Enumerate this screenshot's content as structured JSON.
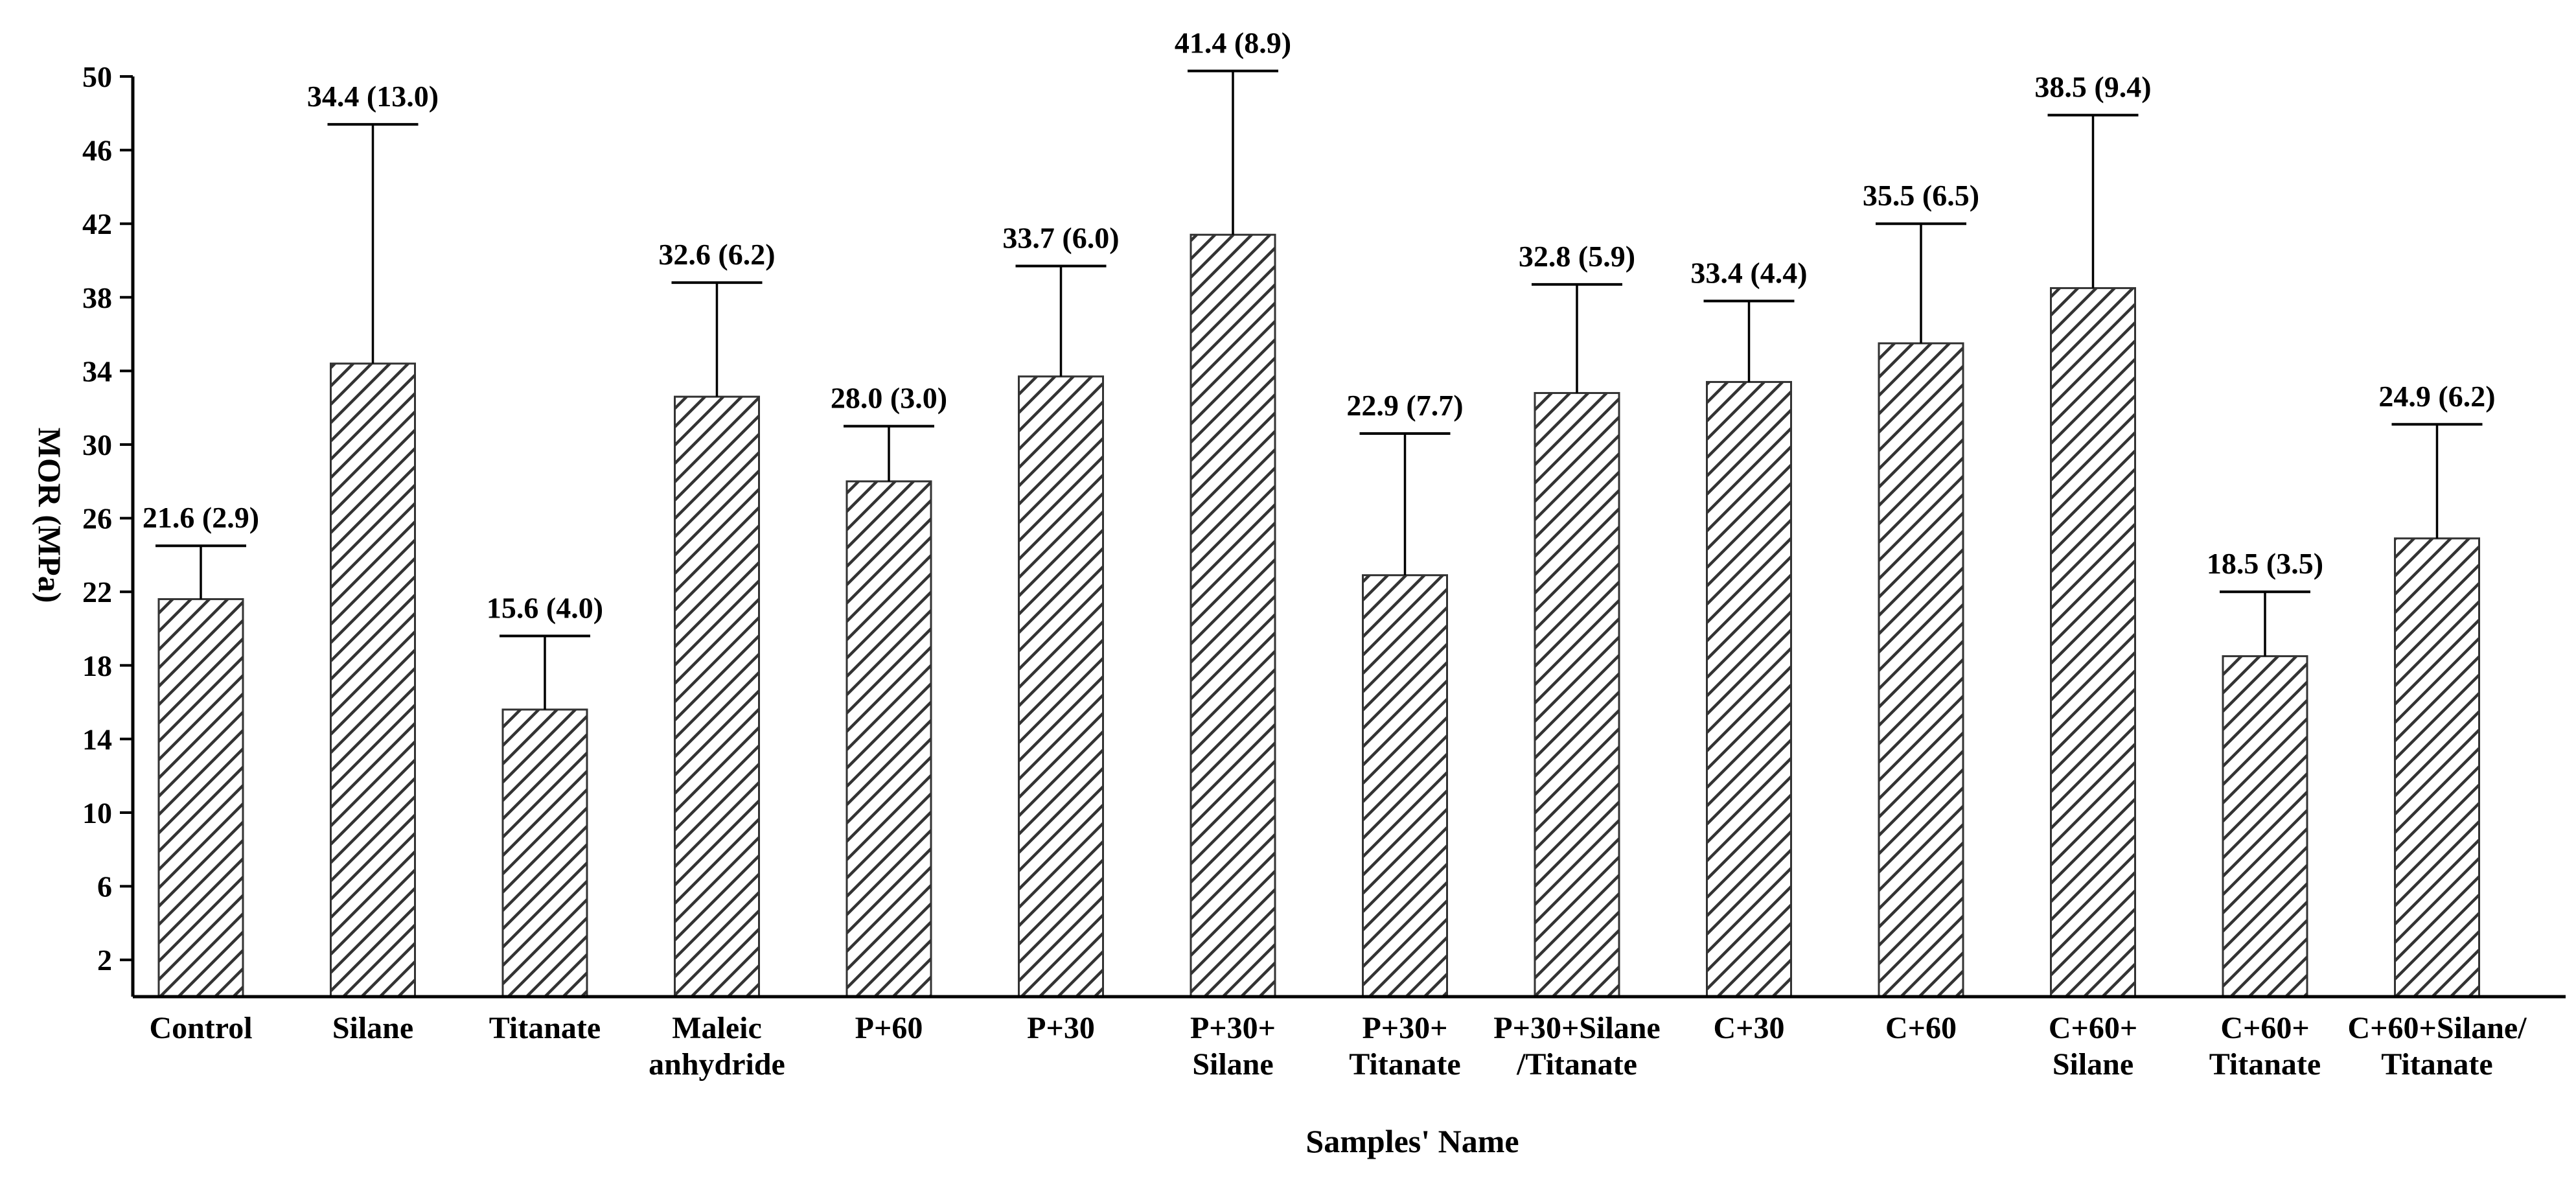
{
  "chart_data": {
    "type": "bar",
    "title": "",
    "xlabel": "Samples' Name",
    "ylabel": "MOR (MPa)",
    "ylim": [
      0,
      50
    ],
    "yticks": [
      2,
      6,
      10,
      14,
      18,
      22,
      26,
      30,
      34,
      38,
      42,
      46,
      50
    ],
    "grid": false,
    "legend": "none",
    "bar_pattern": "diagonal-hatch",
    "colors": {
      "bar_fill": "#ffffff",
      "hatch": "#333333",
      "axis": "#000000",
      "text": "#000000"
    },
    "categories": [
      [
        "Control"
      ],
      [
        "Silane"
      ],
      [
        "Titanate"
      ],
      [
        "Maleic",
        "anhydride"
      ],
      [
        "P+60"
      ],
      [
        "P+30"
      ],
      [
        "P+30+",
        "Silane"
      ],
      [
        "P+30+",
        "Titanate"
      ],
      [
        "P+30+Silane",
        "/Titanate"
      ],
      [
        "C+30"
      ],
      [
        "C+60"
      ],
      [
        "C+60+",
        "Silane"
      ],
      [
        "C+60+",
        "Titanate"
      ],
      [
        "C+60+Silane/",
        "Titanate"
      ]
    ],
    "values": [
      21.6,
      34.4,
      15.6,
      32.6,
      28.0,
      33.7,
      41.4,
      22.9,
      32.8,
      33.4,
      35.5,
      38.5,
      18.5,
      24.9
    ],
    "errors": [
      2.9,
      13.0,
      4.0,
      6.2,
      3.0,
      6.0,
      8.9,
      7.7,
      5.9,
      4.4,
      6.5,
      9.4,
      3.5,
      6.2
    ],
    "data_labels": [
      "21.6 (2.9)",
      "34.4 (13.0)",
      "15.6 (4.0)",
      "32.6 (6.2)",
      "28.0 (3.0)",
      "33.7 (6.0)",
      "41.4 (8.9)",
      "22.9 (7.7)",
      "32.8 (5.9)",
      "33.4 (4.4)",
      "35.5 (6.5)",
      "38.5 (9.4)",
      "18.5 (3.5)",
      "24.9 (6.2)"
    ]
  }
}
